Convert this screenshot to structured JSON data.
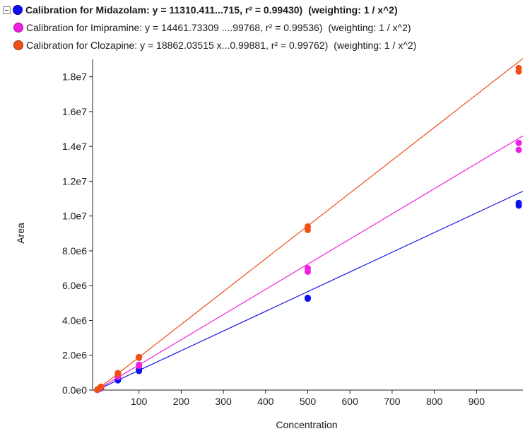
{
  "legend": {
    "items": [
      {
        "text": "Calibration for Midazolam: y = 11310.411...715, r² = 0.99430)",
        "weighting": "(weighting: 1 / x^2)",
        "color": "#1010ee",
        "bold": true
      },
      {
        "text": "Calibration for Imipramine: y = 14461.73309 ....99768, r² = 0.99536)",
        "weighting": "(weighting: 1 / x^2)",
        "color": "#f020e0",
        "bold": false
      },
      {
        "text": "Calibration for Clozapine: y = 18862.03515 x...0.99881, r² = 0.99762)",
        "weighting": "(weighting: 1 / x^2)",
        "color": "#f05018",
        "bold": false
      }
    ]
  },
  "chart_data": {
    "type": "scatter",
    "xlabel": "Concentration",
    "ylabel": "Area",
    "xlim": [
      -10,
      1010
    ],
    "ylim": [
      0,
      19000000
    ],
    "x_ticks": [
      100,
      200,
      300,
      400,
      500,
      600,
      700,
      800,
      900
    ],
    "x_tick_labels": [
      "100",
      "200",
      "300",
      "400",
      "500",
      "600",
      "700",
      "800",
      "900"
    ],
    "y_ticks": [
      0,
      2000000,
      4000000,
      6000000,
      8000000,
      10000000,
      12000000,
      14000000,
      16000000,
      18000000
    ],
    "y_tick_labels": [
      "0.0e0",
      "2.0e6",
      "4.0e6",
      "6.0e6",
      "8.0e6",
      "1.0e7",
      "1.2e7",
      "1.4e7",
      "1.6e7",
      "1.8e7"
    ],
    "grid": false,
    "series": [
      {
        "name": "Calibration for Midazolam",
        "color": "#1010ee",
        "slope": 11310.411,
        "points": [
          [
            1,
            11000
          ],
          [
            2,
            22000
          ],
          [
            5,
            56000
          ],
          [
            10,
            110000
          ],
          [
            10,
            115000
          ],
          [
            50,
            560000
          ],
          [
            50,
            600000
          ],
          [
            100,
            1100000
          ],
          [
            100,
            1200000
          ],
          [
            500,
            5300000
          ],
          [
            500,
            5250000
          ],
          [
            1000,
            10600000
          ],
          [
            1000,
            10750000
          ]
        ]
      },
      {
        "name": "Calibration for Imipramine",
        "color": "#f020e0",
        "slope": 14461.73309,
        "points": [
          [
            1,
            14000
          ],
          [
            2,
            29000
          ],
          [
            5,
            72000
          ],
          [
            10,
            145000
          ],
          [
            10,
            150000
          ],
          [
            50,
            760000
          ],
          [
            50,
            790000
          ],
          [
            100,
            1400000
          ],
          [
            100,
            1450000
          ],
          [
            500,
            6800000
          ],
          [
            500,
            7000000
          ],
          [
            1000,
            13800000
          ],
          [
            1000,
            14200000
          ]
        ]
      },
      {
        "name": "Calibration for Clozapine",
        "color": "#f05018",
        "slope": 18862.03515,
        "points": [
          [
            1,
            19000
          ],
          [
            2,
            38000
          ],
          [
            5,
            94000
          ],
          [
            10,
            190000
          ],
          [
            10,
            195000
          ],
          [
            50,
            930000
          ],
          [
            50,
            980000
          ],
          [
            100,
            1850000
          ],
          [
            100,
            1900000
          ],
          [
            500,
            9200000
          ],
          [
            500,
            9400000
          ],
          [
            1000,
            18300000
          ],
          [
            1000,
            18500000
          ]
        ]
      }
    ]
  }
}
